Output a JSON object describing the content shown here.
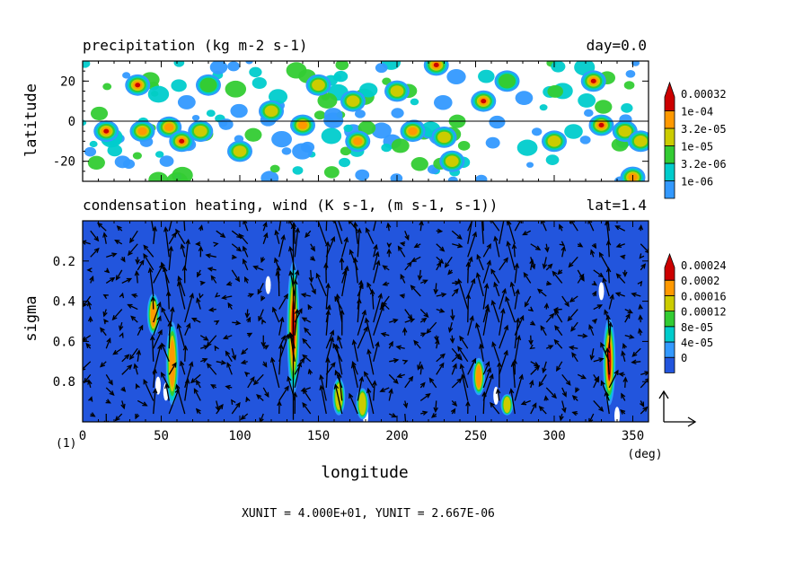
{
  "chart_data": [
    {
      "type": "heatmap",
      "title": "precipitation (kg m-2 s-1)",
      "title_right": "day=0.0",
      "xlabel": "",
      "ylabel": "latitude",
      "xlim": [
        0,
        360
      ],
      "ylim": [
        -30,
        30
      ],
      "yticks": [
        "20",
        "0",
        "-20"
      ],
      "ytick_values": [
        20,
        0,
        -20
      ],
      "reference_line": 0,
      "colorbar": {
        "colors": [
          "#3399ff",
          "#00cccc",
          "#33cc33",
          "#cccc00",
          "#ff9900",
          "#cc0000"
        ],
        "labels": [
          "0.00032",
          "1e-04",
          "3.2e-05",
          "1e-05",
          "3.2e-06",
          "1e-06"
        ],
        "levels": [
          1e-06,
          3.2e-06,
          1e-05,
          3.2e-05,
          0.0001,
          0.00032
        ]
      },
      "cells": [
        {
          "lon": 15,
          "lat": -5,
          "level": 5
        },
        {
          "lon": 35,
          "lat": 18,
          "level": 5
        },
        {
          "lon": 38,
          "lat": -5,
          "level": 4
        },
        {
          "lon": 55,
          "lat": -3,
          "level": 4
        },
        {
          "lon": 63,
          "lat": -10,
          "level": 5
        },
        {
          "lon": 75,
          "lat": -5,
          "level": 3
        },
        {
          "lon": 80,
          "lat": 18,
          "level": 2
        },
        {
          "lon": 100,
          "lat": -15,
          "level": 3
        },
        {
          "lon": 120,
          "lat": 5,
          "level": 3
        },
        {
          "lon": 140,
          "lat": -2,
          "level": 4
        },
        {
          "lon": 150,
          "lat": 18,
          "level": 3
        },
        {
          "lon": 172,
          "lat": 10,
          "level": 3
        },
        {
          "lon": 175,
          "lat": -10,
          "level": 4
        },
        {
          "lon": 200,
          "lat": 15,
          "level": 3
        },
        {
          "lon": 210,
          "lat": -5,
          "level": 4
        },
        {
          "lon": 225,
          "lat": 28,
          "level": 5
        },
        {
          "lon": 230,
          "lat": -8,
          "level": 3
        },
        {
          "lon": 235,
          "lat": -20,
          "level": 3
        },
        {
          "lon": 255,
          "lat": 10,
          "level": 5
        },
        {
          "lon": 270,
          "lat": 20,
          "level": 2
        },
        {
          "lon": 300,
          "lat": -10,
          "level": 3
        },
        {
          "lon": 325,
          "lat": 20,
          "level": 5
        },
        {
          "lon": 330,
          "lat": -2,
          "level": 5
        },
        {
          "lon": 345,
          "lat": -5,
          "level": 3
        },
        {
          "lon": 355,
          "lat": -10,
          "level": 3
        },
        {
          "lon": 350,
          "lat": -28,
          "level": 4
        }
      ]
    },
    {
      "type": "heatmap",
      "title": "condensation heating, wind (K s-1, (m s-1, s-1))",
      "title_right": "lat=1.4",
      "xlabel": "longitude",
      "xunit": "(deg)",
      "ylabel": "sigma",
      "xlim": [
        0,
        360
      ],
      "ylim": [
        0.0,
        1.0
      ],
      "xticks": [
        "0",
        "50",
        "100",
        "150",
        "200",
        "250",
        "300",
        "350"
      ],
      "xtick_values": [
        0,
        50,
        100,
        150,
        200,
        250,
        300,
        350
      ],
      "yticks": [
        "0.2",
        "0.4",
        "0.6",
        "0.8"
      ],
      "ytick_values": [
        0.2,
        0.4,
        0.6,
        0.8
      ],
      "corner_label": "(1)",
      "vector_unit_text": "XUNIT = 4.000E+01, YUNIT = 2.667E-06",
      "background_color": "#2255dd",
      "colorbar": {
        "colors": [
          "#2255dd",
          "#3399ff",
          "#00cccc",
          "#33cc33",
          "#cccc00",
          "#ff9900",
          "#cc0000"
        ],
        "labels": [
          "0.00024",
          "0.0002",
          "0.00016",
          "0.00012",
          "8e-05",
          "4e-05",
          "0"
        ],
        "levels": [
          0,
          4e-05,
          8e-05,
          0.00012,
          0.00016,
          0.0002,
          0.00024
        ]
      },
      "heating_columns": [
        {
          "lon": 45,
          "sigma_top": 0.38,
          "sigma_bottom": 0.55,
          "level": 5
        },
        {
          "lon": 57,
          "sigma_top": 0.52,
          "sigma_bottom": 0.9,
          "level": 5
        },
        {
          "lon": 134,
          "sigma_top": 0.22,
          "sigma_bottom": 0.85,
          "level": 6
        },
        {
          "lon": 163,
          "sigma_top": 0.8,
          "sigma_bottom": 0.95,
          "level": 4
        },
        {
          "lon": 178,
          "sigma_top": 0.85,
          "sigma_bottom": 0.97,
          "level": 4
        },
        {
          "lon": 252,
          "sigma_top": 0.7,
          "sigma_bottom": 0.85,
          "level": 5
        },
        {
          "lon": 270,
          "sigma_top": 0.88,
          "sigma_bottom": 0.95,
          "level": 4
        },
        {
          "lon": 335,
          "sigma_top": 0.5,
          "sigma_bottom": 0.9,
          "level": 6
        }
      ]
    }
  ]
}
